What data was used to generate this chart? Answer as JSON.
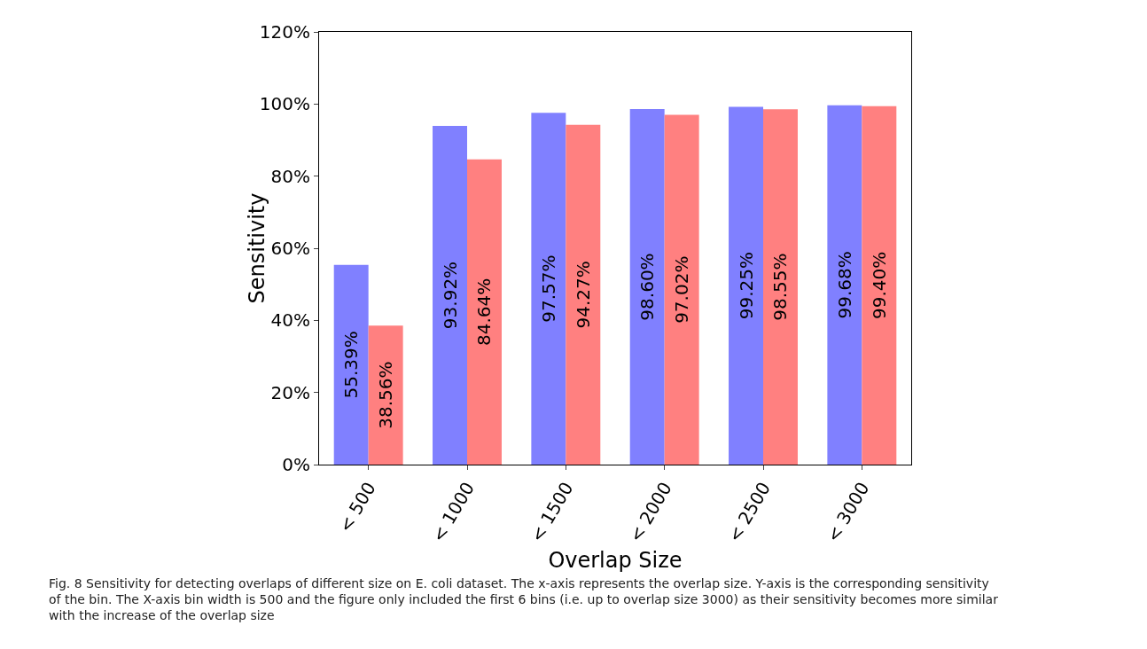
{
  "chart_data": {
    "type": "bar",
    "xlabel": "Overlap Size",
    "ylabel": "Sensitivity",
    "categories": [
      "< 500",
      "< 1000",
      "< 1500",
      "< 2000",
      "< 2500",
      "< 3000"
    ],
    "series": [
      {
        "color": "#8080ff",
        "values": [
          55.39,
          93.92,
          97.57,
          98.6,
          99.25,
          99.68
        ],
        "value_labels": [
          "55.39%",
          "93.92%",
          "97.57%",
          "98.60%",
          "99.25%",
          "99.68%"
        ]
      },
      {
        "color": "#ff8080",
        "values": [
          38.56,
          84.64,
          94.27,
          97.02,
          98.55,
          99.4
        ],
        "value_labels": [
          "38.56%",
          "84.64%",
          "94.27%",
          "97.02%",
          "98.55%",
          "99.40%"
        ]
      }
    ],
    "ylim": [
      0,
      120
    ],
    "yticks": [
      {
        "value": 0,
        "label": "0%"
      },
      {
        "value": 20,
        "label": "20%"
      },
      {
        "value": 40,
        "label": "40%"
      },
      {
        "value": 60,
        "label": "60%"
      },
      {
        "value": 80,
        "label": "80%"
      },
      {
        "value": 100,
        "label": "100%"
      },
      {
        "value": 120,
        "label": "120%"
      }
    ],
    "grid": false,
    "annotations": [
      "Fig. 8 Sensitivity for detecting overlaps of different size on E. coli dataset. The x-axis represents the overlap size. Y-axis is the corresponding sensitivity of the bin. The X-axis bin width is 500 and the figure only included the first 6 bins (i.e. up to overlap size 3000) as their sensitivity becomes more similar with the increase of the overlap size"
    ]
  }
}
